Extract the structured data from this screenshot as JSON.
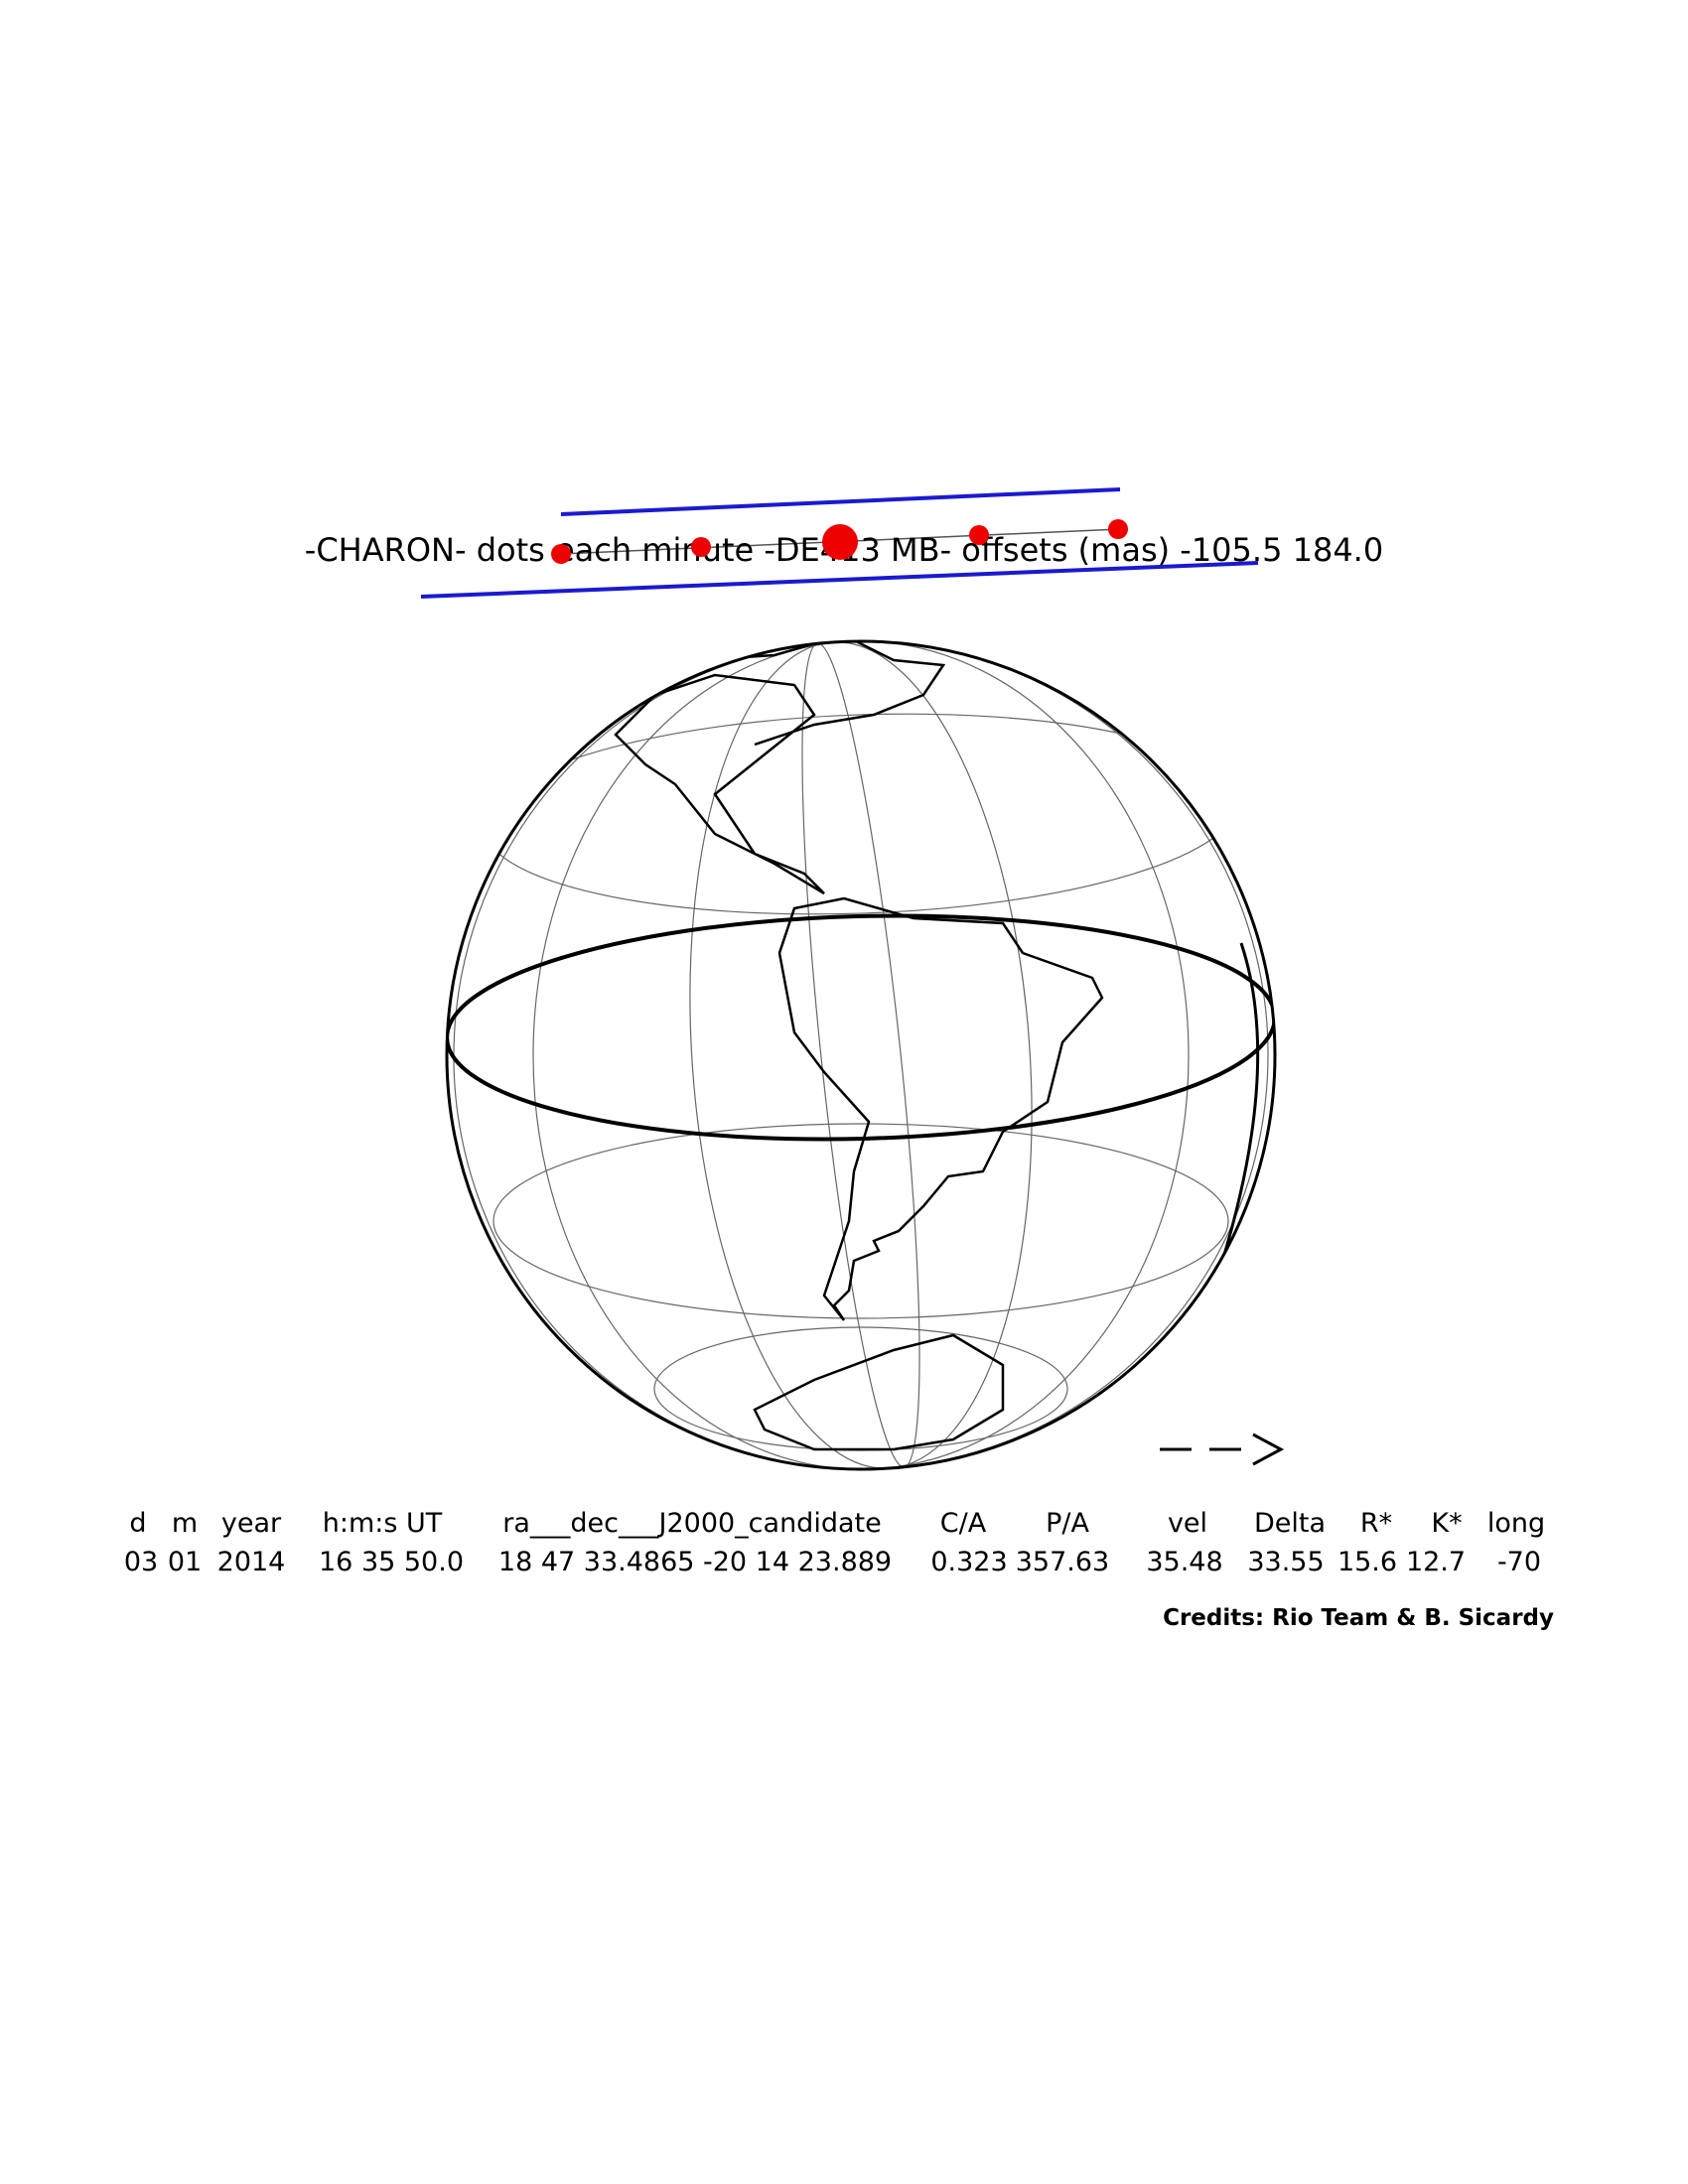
{
  "title": "-CHARON- dots each minute -DE413 MB- offsets (mas) -105.5 184.0",
  "table": {
    "headers": [
      "d",
      "m",
      "year",
      "h:m:s UT",
      "ra___dec___J2000_candidate",
      "C/A",
      "P/A",
      "vel",
      "Delta",
      "R*",
      "K*",
      "long"
    ],
    "values": [
      "03",
      "01",
      "2014",
      "16 35 50.0",
      "18 47 33.4865 -20 14 23.889",
      "0.323",
      "357.63",
      "35.48",
      "33.55",
      "15.6",
      "12.7",
      "-70"
    ]
  },
  "credits": "Credits: Rio Team & B. Sicardy"
}
